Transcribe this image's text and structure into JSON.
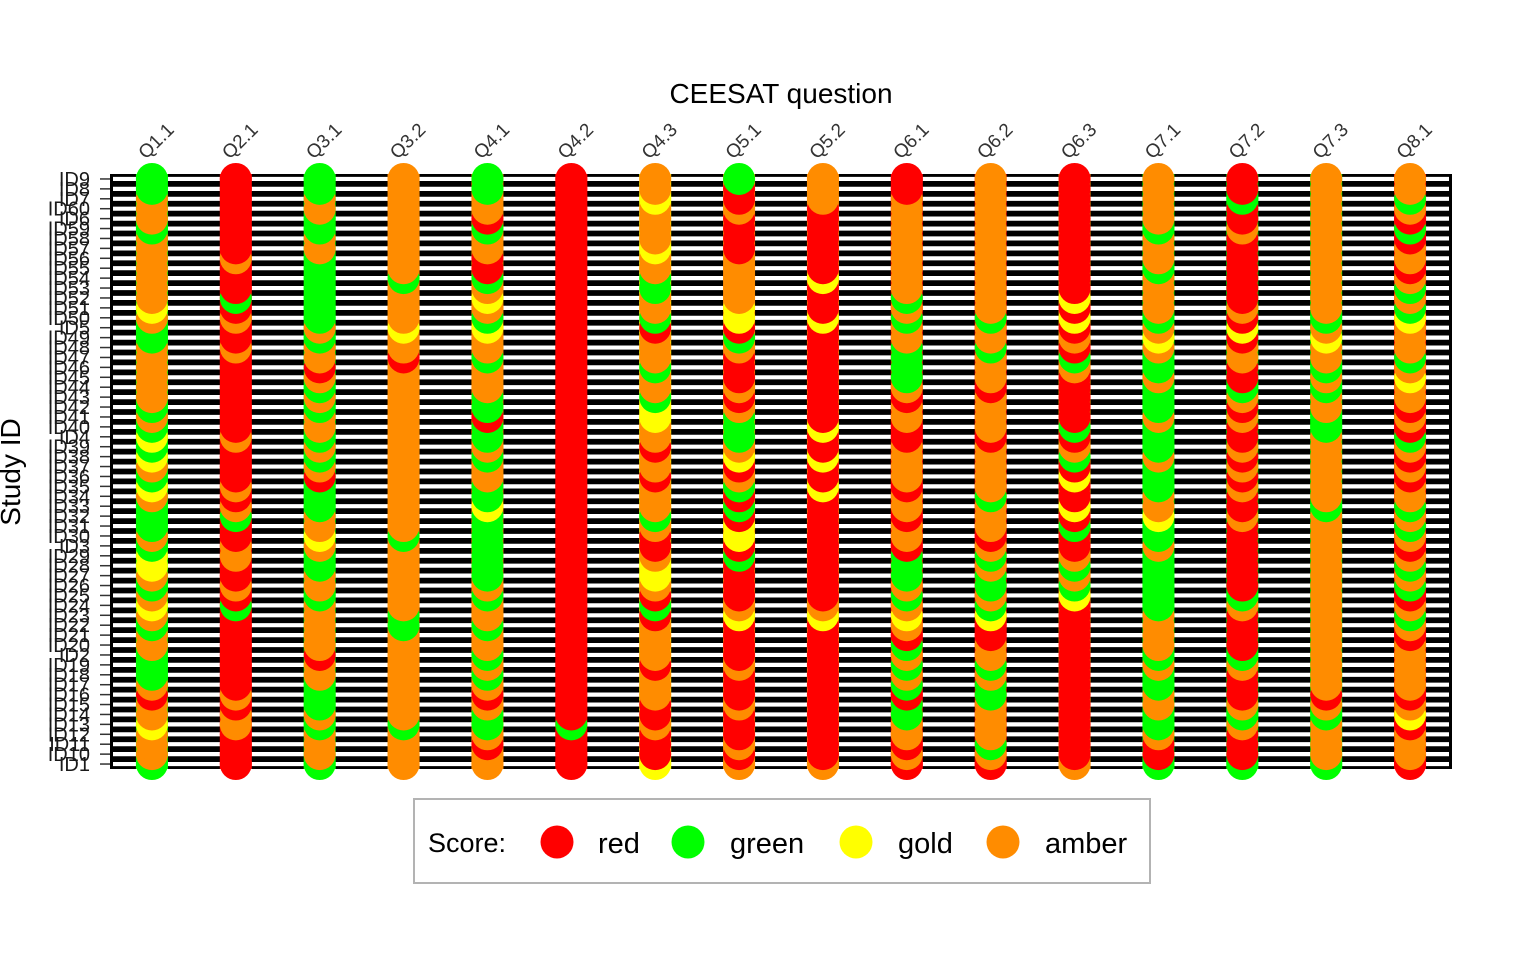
{
  "chart_data": {
    "type": "heatmap",
    "title": "",
    "xlabel": "CEESAT question",
    "ylabel": "Study ID",
    "grid": true,
    "legend_position": "bottom",
    "legend": {
      "title": "Score:",
      "entries": [
        {
          "label": "red",
          "color": "#ff0000"
        },
        {
          "label": "green",
          "color": "#00ff00"
        },
        {
          "label": "gold",
          "color": "#ffff00"
        },
        {
          "label": "amber",
          "color": "#ff8c00"
        }
      ]
    },
    "columns": [
      "Q1.1",
      "Q2.1",
      "Q3.1",
      "Q3.2",
      "Q4.1",
      "Q4.2",
      "Q4.3",
      "Q5.1",
      "Q5.2",
      "Q6.1",
      "Q6.2",
      "Q6.3",
      "Q7.1",
      "Q7.2",
      "Q7.3",
      "Q8.1"
    ],
    "rows": [
      "ID1",
      "ID10",
      "ID11",
      "ID12",
      "ID13",
      "ID14",
      "ID15",
      "ID16",
      "ID17",
      "ID18",
      "ID19",
      "ID2",
      "ID20",
      "ID21",
      "ID22",
      "ID23",
      "ID24",
      "ID25",
      "ID26",
      "ID27",
      "ID28",
      "ID29",
      "ID3",
      "ID30",
      "ID31",
      "ID32",
      "ID33",
      "ID34",
      "ID35",
      "ID36",
      "ID37",
      "ID38",
      "ID39",
      "ID4",
      "ID40",
      "ID41",
      "ID42",
      "ID43",
      "ID44",
      "ID45",
      "ID46",
      "ID47",
      "ID48",
      "ID49",
      "ID5",
      "ID50",
      "ID51",
      "ID52",
      "ID53",
      "ID54",
      "ID55",
      "ID56",
      "ID57",
      "ID58",
      "ID59",
      "ID6",
      "ID60",
      "ID7",
      "ID8",
      "ID9"
    ],
    "values": [
      [
        "green",
        "red",
        "green",
        "amber",
        "amber",
        "red",
        "gold",
        "amber",
        "amber",
        "red",
        "red",
        "amber",
        "green",
        "green",
        "green",
        "red"
      ],
      [
        "amber",
        "red",
        "amber",
        "amber",
        "amber",
        "red",
        "red",
        "red",
        "red",
        "amber",
        "amber",
        "red",
        "red",
        "red",
        "amber",
        "amber"
      ],
      [
        "amber",
        "red",
        "amber",
        "amber",
        "red",
        "red",
        "red",
        "amber",
        "red",
        "red",
        "green",
        "red",
        "red",
        "red",
        "amber",
        "amber"
      ],
      [
        "amber",
        "red",
        "amber",
        "amber",
        "amber",
        "red",
        "red",
        "red",
        "red",
        "amber",
        "amber",
        "red",
        "amber",
        "red",
        "amber",
        "amber"
      ],
      [
        "gold",
        "amber",
        "green",
        "green",
        "green",
        "green",
        "amber",
        "red",
        "red",
        "amber",
        "amber",
        "red",
        "green",
        "amber",
        "amber",
        "red"
      ],
      [
        "amber",
        "amber",
        "amber",
        "amber",
        "green",
        "red",
        "red",
        "red",
        "red",
        "green",
        "amber",
        "red",
        "green",
        "green",
        "green",
        "gold"
      ],
      [
        "amber",
        "red",
        "green",
        "amber",
        "amber",
        "red",
        "red",
        "amber",
        "red",
        "green",
        "amber",
        "red",
        "amber",
        "amber",
        "amber",
        "amber"
      ],
      [
        "red",
        "amber",
        "green",
        "amber",
        "red",
        "red",
        "amber",
        "red",
        "red",
        "red",
        "green",
        "red",
        "amber",
        "red",
        "red",
        "red"
      ],
      [
        "amber",
        "red",
        "green",
        "amber",
        "amber",
        "red",
        "amber",
        "red",
        "red",
        "green",
        "green",
        "red",
        "green",
        "red",
        "amber",
        "amber"
      ],
      [
        "green",
        "red",
        "amber",
        "amber",
        "green",
        "red",
        "amber",
        "red",
        "red",
        "amber",
        "amber",
        "red",
        "green",
        "red",
        "amber",
        "amber"
      ],
      [
        "green",
        "red",
        "amber",
        "amber",
        "amber",
        "red",
        "red",
        "amber",
        "red",
        "green",
        "green",
        "red",
        "amber",
        "amber",
        "amber",
        "amber"
      ],
      [
        "green",
        "red",
        "red",
        "amber",
        "green",
        "red",
        "amber",
        "red",
        "red",
        "amber",
        "amber",
        "red",
        "green",
        "green",
        "amber",
        "amber"
      ],
      [
        "amber",
        "red",
        "amber",
        "amber",
        "amber",
        "red",
        "amber",
        "red",
        "red",
        "green",
        "amber",
        "red",
        "amber",
        "red",
        "amber",
        "amber"
      ],
      [
        "amber",
        "red",
        "amber",
        "amber",
        "amber",
        "red",
        "amber",
        "red",
        "red",
        "red",
        "red",
        "red",
        "amber",
        "red",
        "amber",
        "red"
      ],
      [
        "green",
        "red",
        "amber",
        "green",
        "green",
        "red",
        "amber",
        "red",
        "red",
        "amber",
        "red",
        "red",
        "amber",
        "red",
        "amber",
        "amber"
      ],
      [
        "amber",
        "red",
        "amber",
        "green",
        "amber",
        "red",
        "red",
        "gold",
        "gold",
        "gold",
        "gold",
        "red",
        "amber",
        "red",
        "amber",
        "green"
      ],
      [
        "gold",
        "green",
        "amber",
        "amber",
        "amber",
        "red",
        "green",
        "amber",
        "amber",
        "amber",
        "green",
        "red",
        "green",
        "amber",
        "amber",
        "amber"
      ],
      [
        "amber",
        "red",
        "green",
        "amber",
        "green",
        "red",
        "red",
        "red",
        "red",
        "green",
        "amber",
        "gold",
        "green",
        "green",
        "amber",
        "red"
      ],
      [
        "green",
        "amber",
        "amber",
        "amber",
        "amber",
        "red",
        "amber",
        "red",
        "red",
        "amber",
        "green",
        "green",
        "green",
        "red",
        "amber",
        "green"
      ],
      [
        "amber",
        "red",
        "amber",
        "amber",
        "green",
        "red",
        "gold",
        "red",
        "red",
        "green",
        "green",
        "amber",
        "green",
        "red",
        "amber",
        "amber"
      ],
      [
        "gold",
        "red",
        "green",
        "amber",
        "green",
        "red",
        "gold",
        "red",
        "red",
        "green",
        "amber",
        "green",
        "green",
        "red",
        "amber",
        "green"
      ],
      [
        "gold",
        "amber",
        "green",
        "amber",
        "green",
        "red",
        "amber",
        "green",
        "red",
        "green",
        "green",
        "amber",
        "green",
        "red",
        "amber",
        "amber"
      ],
      [
        "green",
        "amber",
        "amber",
        "amber",
        "green",
        "red",
        "red",
        "red",
        "red",
        "red",
        "amber",
        "red",
        "amber",
        "red",
        "amber",
        "red"
      ],
      [
        "amber",
        "red",
        "gold",
        "green",
        "green",
        "red",
        "red",
        "gold",
        "red",
        "amber",
        "red",
        "red",
        "green",
        "red",
        "amber",
        "amber"
      ],
      [
        "green",
        "red",
        "amber",
        "amber",
        "green",
        "red",
        "amber",
        "gold",
        "red",
        "amber",
        "amber",
        "green",
        "green",
        "red",
        "amber",
        "green"
      ],
      [
        "green",
        "green",
        "amber",
        "amber",
        "green",
        "red",
        "green",
        "red",
        "red",
        "red",
        "amber",
        "red",
        "gold",
        "amber",
        "amber",
        "amber"
      ],
      [
        "green",
        "amber",
        "green",
        "amber",
        "gold",
        "red",
        "amber",
        "green",
        "red",
        "amber",
        "amber",
        "gold",
        "amber",
        "red",
        "green",
        "green"
      ],
      [
        "amber",
        "red",
        "green",
        "amber",
        "green",
        "red",
        "amber",
        "red",
        "red",
        "amber",
        "green",
        "red",
        "amber",
        "red",
        "amber",
        "amber"
      ],
      [
        "gold",
        "amber",
        "green",
        "amber",
        "green",
        "red",
        "amber",
        "green",
        "gold",
        "red",
        "amber",
        "red",
        "green",
        "amber",
        "amber",
        "amber"
      ],
      [
        "green",
        "red",
        "red",
        "amber",
        "amber",
        "red",
        "red",
        "amber",
        "red",
        "amber",
        "amber",
        "gold",
        "green",
        "red",
        "amber",
        "red"
      ],
      [
        "amber",
        "red",
        "amber",
        "amber",
        "amber",
        "red",
        "amber",
        "red",
        "red",
        "amber",
        "amber",
        "red",
        "green",
        "amber",
        "amber",
        "amber"
      ],
      [
        "gold",
        "red",
        "green",
        "amber",
        "green",
        "red",
        "amber",
        "gold",
        "gold",
        "amber",
        "amber",
        "green",
        "amber",
        "red",
        "amber",
        "red"
      ],
      [
        "green",
        "red",
        "amber",
        "amber",
        "amber",
        "red",
        "red",
        "amber",
        "red",
        "amber",
        "amber",
        "amber",
        "green",
        "amber",
        "amber",
        "amber"
      ],
      [
        "gold",
        "amber",
        "green",
        "amber",
        "green",
        "red",
        "amber",
        "green",
        "red",
        "red",
        "red",
        "red",
        "green",
        "red",
        "amber",
        "green"
      ],
      [
        "green",
        "red",
        "amber",
        "amber",
        "green",
        "red",
        "amber",
        "green",
        "gold",
        "red",
        "amber",
        "green",
        "green",
        "red",
        "green",
        "red"
      ],
      [
        "amber",
        "red",
        "amber",
        "amber",
        "red",
        "red",
        "gold",
        "green",
        "red",
        "amber",
        "amber",
        "red",
        "amber",
        "amber",
        "green",
        "amber"
      ],
      [
        "green",
        "red",
        "green",
        "amber",
        "green",
        "red",
        "gold",
        "amber",
        "red",
        "amber",
        "amber",
        "red",
        "green",
        "red",
        "amber",
        "red"
      ],
      [
        "amber",
        "red",
        "amber",
        "amber",
        "green",
        "red",
        "green",
        "red",
        "red",
        "red",
        "amber",
        "red",
        "green",
        "amber",
        "amber",
        "amber"
      ],
      [
        "amber",
        "red",
        "green",
        "amber",
        "amber",
        "red",
        "amber",
        "amber",
        "red",
        "amber",
        "red",
        "red",
        "green",
        "green",
        "green",
        "amber"
      ],
      [
        "amber",
        "red",
        "amber",
        "amber",
        "amber",
        "red",
        "amber",
        "red",
        "red",
        "green",
        "amber",
        "red",
        "amber",
        "red",
        "amber",
        "gold"
      ],
      [
        "amber",
        "red",
        "red",
        "amber",
        "amber",
        "red",
        "green",
        "red",
        "red",
        "green",
        "amber",
        "amber",
        "green",
        "red",
        "green",
        "amber"
      ],
      [
        "amber",
        "red",
        "amber",
        "red",
        "green",
        "red",
        "amber",
        "red",
        "red",
        "green",
        "amber",
        "green",
        "green",
        "amber",
        "amber",
        "green"
      ],
      [
        "amber",
        "amber",
        "amber",
        "amber",
        "amber",
        "red",
        "amber",
        "amber",
        "red",
        "green",
        "green",
        "red",
        "amber",
        "amber",
        "amber",
        "amber"
      ],
      [
        "green",
        "red",
        "green",
        "amber",
        "amber",
        "red",
        "amber",
        "green",
        "red",
        "amber",
        "amber",
        "amber",
        "gold",
        "red",
        "gold",
        "amber"
      ],
      [
        "green",
        "red",
        "amber",
        "gold",
        "gold",
        "red",
        "red",
        "red",
        "red",
        "amber",
        "amber",
        "red",
        "amber",
        "gold",
        "amber",
        "amber"
      ],
      [
        "amber",
        "amber",
        "green",
        "amber",
        "green",
        "red",
        "green",
        "gold",
        "gold",
        "green",
        "green",
        "gold",
        "green",
        "red",
        "green",
        "gold"
      ],
      [
        "gold",
        "red",
        "green",
        "amber",
        "amber",
        "red",
        "amber",
        "gold",
        "red",
        "amber",
        "amber",
        "red",
        "amber",
        "amber",
        "amber",
        "green"
      ],
      [
        "amber",
        "green",
        "green",
        "amber",
        "gold",
        "red",
        "amber",
        "amber",
        "red",
        "green",
        "amber",
        "gold",
        "amber",
        "red",
        "amber",
        "amber"
      ],
      [
        "amber",
        "red",
        "green",
        "amber",
        "amber",
        "red",
        "green",
        "amber",
        "red",
        "amber",
        "amber",
        "red",
        "amber",
        "red",
        "amber",
        "green"
      ],
      [
        "amber",
        "red",
        "green",
        "green",
        "green",
        "red",
        "green",
        "amber",
        "gold",
        "amber",
        "amber",
        "red",
        "amber",
        "red",
        "amber",
        "amber"
      ],
      [
        "amber",
        "red",
        "green",
        "amber",
        "red",
        "red",
        "amber",
        "amber",
        "red",
        "amber",
        "amber",
        "red",
        "green",
        "red",
        "amber",
        "red"
      ],
      [
        "amber",
        "amber",
        "green",
        "amber",
        "red",
        "red",
        "amber",
        "amber",
        "red",
        "amber",
        "amber",
        "red",
        "amber",
        "red",
        "amber",
        "amber"
      ],
      [
        "amber",
        "red",
        "amber",
        "amber",
        "amber",
        "red",
        "gold",
        "red",
        "red",
        "amber",
        "amber",
        "red",
        "amber",
        "red",
        "amber",
        "amber"
      ],
      [
        "amber",
        "red",
        "amber",
        "amber",
        "amber",
        "red",
        "amber",
        "red",
        "red",
        "amber",
        "amber",
        "red",
        "amber",
        "red",
        "amber",
        "red"
      ],
      [
        "green",
        "red",
        "green",
        "amber",
        "green",
        "red",
        "amber",
        "red",
        "red",
        "amber",
        "amber",
        "red",
        "green",
        "amber",
        "amber",
        "green"
      ],
      [
        "amber",
        "red",
        "green",
        "amber",
        "red",
        "red",
        "amber",
        "red",
        "red",
        "amber",
        "amber",
        "red",
        "amber",
        "red",
        "amber",
        "red"
      ],
      [
        "amber",
        "red",
        "amber",
        "amber",
        "amber",
        "red",
        "amber",
        "amber",
        "red",
        "amber",
        "amber",
        "red",
        "amber",
        "red",
        "amber",
        "amber"
      ],
      [
        "amber",
        "red",
        "amber",
        "amber",
        "amber",
        "red",
        "gold",
        "red",
        "amber",
        "amber",
        "amber",
        "red",
        "amber",
        "green",
        "amber",
        "green"
      ],
      [
        "green",
        "red",
        "green",
        "amber",
        "green",
        "red",
        "amber",
        "red",
        "amber",
        "red",
        "amber",
        "red",
        "amber",
        "red",
        "amber",
        "amber"
      ],
      [
        "green",
        "red",
        "green",
        "amber",
        "green",
        "red",
        "amber",
        "green",
        "amber",
        "red",
        "amber",
        "red",
        "amber",
        "red",
        "amber",
        "amber"
      ]
    ]
  }
}
